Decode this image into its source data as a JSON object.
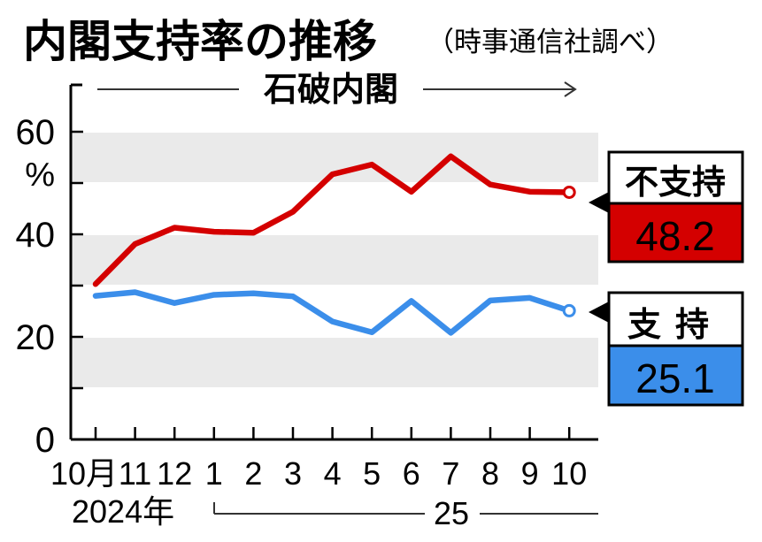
{
  "title": "内閣支持率の推移",
  "subtitle": "（時事通信社調べ）",
  "period_label": "石破内閣",
  "chart_data": {
    "type": "line",
    "title": "内閣支持率の推移",
    "subtitle": "（時事通信社調べ）",
    "x_tick_labels": [
      "10月",
      "11",
      "12",
      "1",
      "2",
      "3",
      "4",
      "5",
      "6",
      "7",
      "8",
      "9",
      "10"
    ],
    "year_labels": [
      "2024年",
      "25"
    ],
    "y_unit": "%",
    "y_tick_labels": [
      "0",
      "20",
      "40",
      "60"
    ],
    "ylim": [
      0,
      70
    ],
    "grid": "shaded bands every 10 points",
    "series": [
      {
        "name": "不支持",
        "color": "#d40000",
        "latest_value": "48.2",
        "values": [
          30.3,
          38.1,
          41.3,
          40.5,
          40.3,
          44.4,
          51.7,
          53.6,
          48.3,
          55.2,
          49.7,
          48.3,
          48.2
        ]
      },
      {
        "name": "支持",
        "color": "#3b8eea",
        "latest_value": "25.1",
        "values": [
          28.0,
          28.7,
          26.6,
          28.2,
          28.5,
          27.9,
          23.0,
          20.9,
          27.0,
          20.8,
          27.1,
          27.6,
          25.1
        ]
      }
    ]
  }
}
